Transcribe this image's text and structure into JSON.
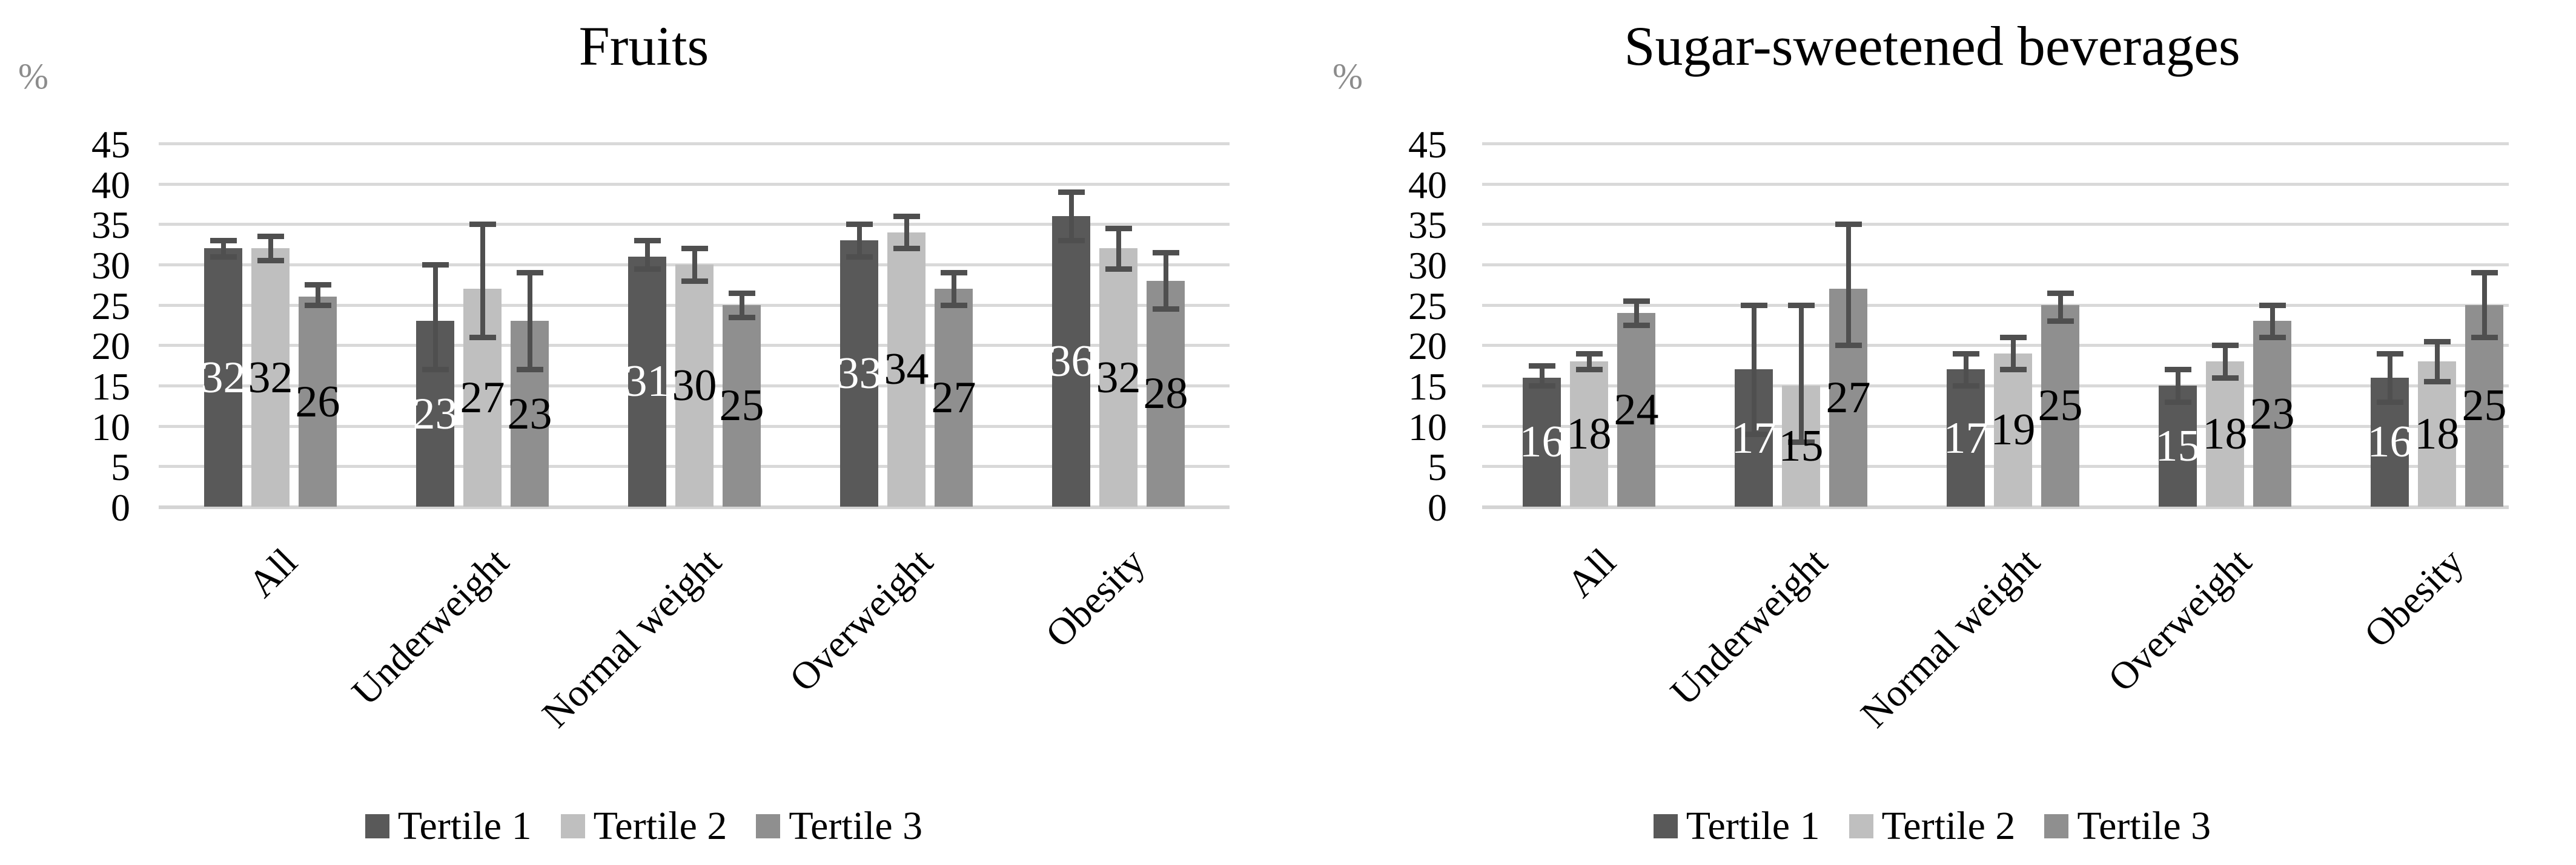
{
  "style": {
    "background": "#ffffff",
    "series_colors": {
      "tertile1": "#595959",
      "tertile2": "#bfbfbf",
      "tertile3": "#8f8f8f"
    },
    "series_label_colors": {
      "tertile1": "#ffffff",
      "tertile2": "#000000",
      "tertile3": "#000000"
    },
    "error_bar_color": "#4f4f4f",
    "gridline_color": "#d9d9d9",
    "axis_line_color": "#d4d4d4",
    "percent_label_color": "#8c8c8c",
    "tick_label_color": "#000000"
  },
  "chart_data": [
    {
      "type": "bar",
      "title": "Fruits",
      "ylabel": "%",
      "ylim": [
        0,
        45
      ],
      "ytick_step": 5,
      "yticks": [
        "45",
        "40",
        "35",
        "30",
        "25",
        "20",
        "15",
        "10",
        "5",
        "0"
      ],
      "grid": true,
      "legend_position": "bottom",
      "categories": [
        "All",
        "Underweight",
        "Normal weight",
        "Overweight",
        "Obesity"
      ],
      "series": [
        {
          "name": "Tertile 1",
          "color_key": "tertile1",
          "values": [
            32,
            23,
            31,
            33,
            36
          ],
          "error_low": [
            31,
            17,
            29.5,
            31,
            33
          ],
          "error_high": [
            33,
            30,
            33,
            35,
            39
          ]
        },
        {
          "name": "Tertile 2",
          "color_key": "tertile2",
          "values": [
            32,
            27,
            30,
            34,
            32
          ],
          "error_low": [
            30.5,
            21,
            28,
            32,
            29.5
          ],
          "error_high": [
            33.5,
            35,
            32,
            36,
            34.5
          ]
        },
        {
          "name": "Tertile 3",
          "color_key": "tertile3",
          "values": [
            26,
            23,
            25,
            27,
            28
          ],
          "error_low": [
            25,
            17,
            23.5,
            25,
            24.5
          ],
          "error_high": [
            27.5,
            29,
            26.5,
            29,
            31.5
          ]
        }
      ]
    },
    {
      "type": "bar",
      "title": "Sugar-sweetened beverages",
      "ylabel": "%",
      "ylim": [
        0,
        45
      ],
      "ytick_step": 5,
      "yticks": [
        "45",
        "40",
        "35",
        "30",
        "25",
        "20",
        "15",
        "10",
        "5",
        "0"
      ],
      "grid": true,
      "legend_position": "bottom",
      "categories": [
        "All",
        "Underweight",
        "Normal weight",
        "Overweight",
        "Obesity"
      ],
      "series": [
        {
          "name": "Tertile 1",
          "color_key": "tertile1",
          "values": [
            16,
            17,
            17,
            15,
            16
          ],
          "error_low": [
            15,
            9,
            15,
            13,
            13
          ],
          "error_high": [
            17.5,
            25,
            19,
            17,
            19
          ]
        },
        {
          "name": "Tertile 2",
          "color_key": "tertile2",
          "values": [
            18,
            15,
            19,
            18,
            18
          ],
          "error_low": [
            17,
            8,
            17,
            16,
            15.5
          ],
          "error_high": [
            19,
            25,
            21,
            20,
            20.5
          ]
        },
        {
          "name": "Tertile 3",
          "color_key": "tertile3",
          "values": [
            24,
            27,
            25,
            23,
            25
          ],
          "error_low": [
            22.5,
            20,
            23,
            21,
            21
          ],
          "error_high": [
            25.5,
            35,
            26.5,
            25,
            29
          ]
        }
      ]
    }
  ]
}
